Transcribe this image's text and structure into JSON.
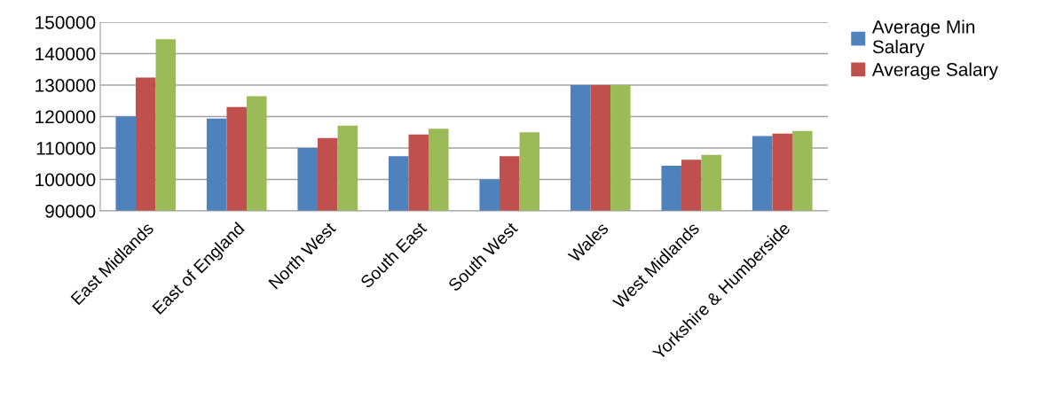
{
  "chart_data": {
    "type": "bar",
    "categories": [
      "East Midlands",
      "East of England",
      "North West",
      "South East",
      "South West",
      "Wales",
      "West Midlands",
      "Yorkshire & Humberside"
    ],
    "series": [
      {
        "name": "Average Min\nSalary",
        "color": "#4f81bd",
        "values": [
          120000,
          119400,
          110000,
          107400,
          100000,
          130000,
          104400,
          113800
        ]
      },
      {
        "name": "Average Salary",
        "color": "#c0504d",
        "values": [
          132400,
          123000,
          113200,
          114300,
          107400,
          130000,
          106300,
          114600
        ]
      },
      {
        "color": "#9bbb59",
        "values": [
          144600,
          126500,
          117100,
          116100,
          115000,
          130000,
          107800,
          115400
        ]
      }
    ],
    "ylim": [
      90000,
      150000
    ],
    "yticks": [
      90000,
      100000,
      110000,
      120000,
      130000,
      140000,
      150000
    ],
    "grid": "y",
    "legend": "top right"
  }
}
